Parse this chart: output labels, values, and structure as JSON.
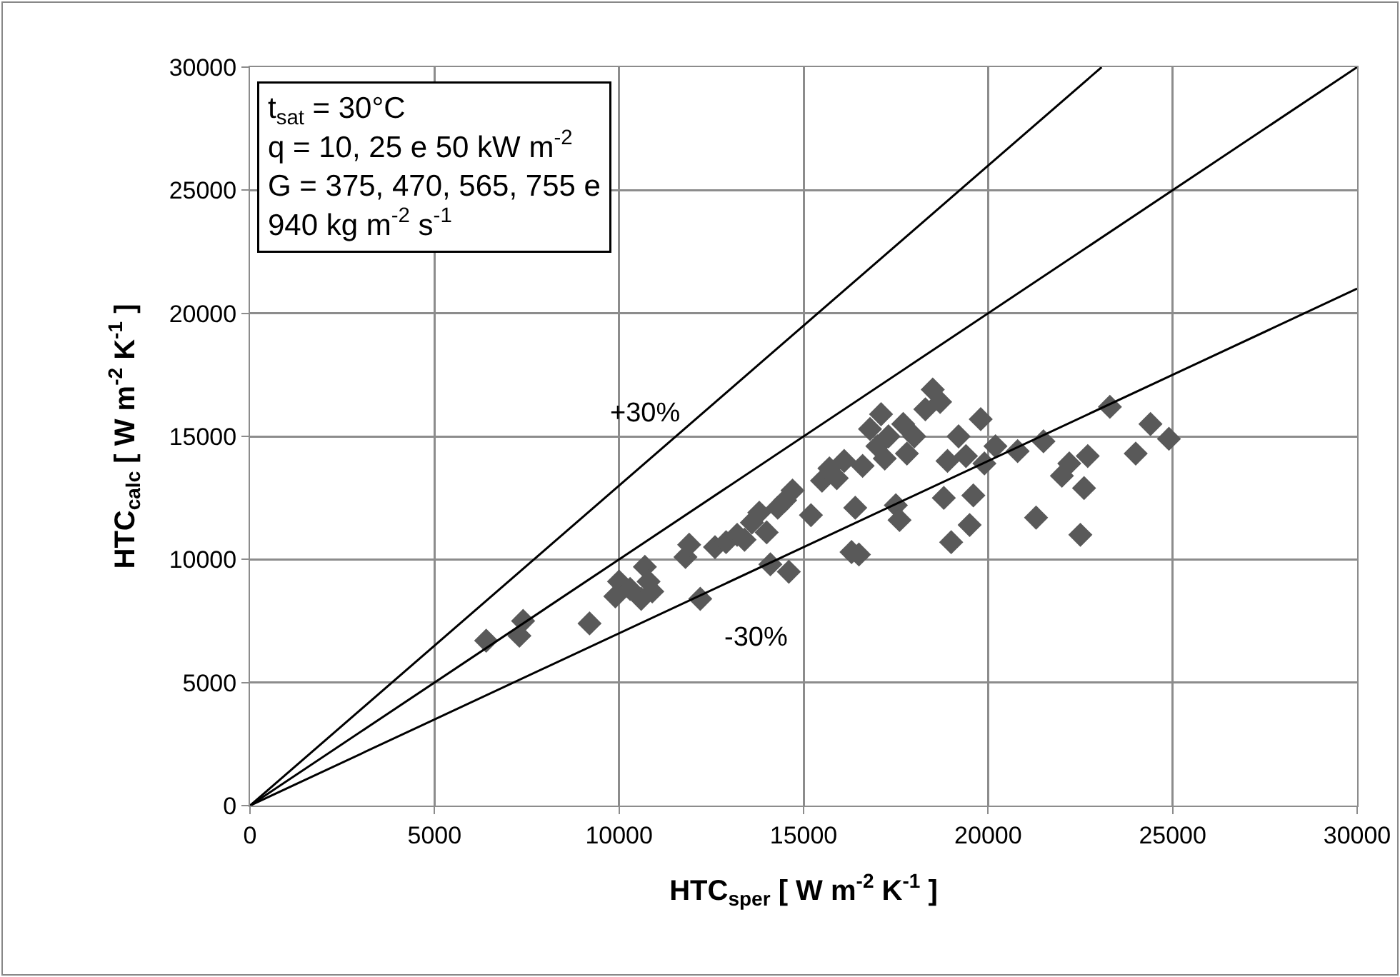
{
  "chart_data": {
    "type": "scatter",
    "xlabel": "HTC$_{sper}$ [ W m$^{-2}$ K$^{-1}$ ]",
    "ylabel": "HTC$_{calc}$ [ W m$^{-2}$ K$^{-1}$ ]",
    "xlim": [
      0,
      30000
    ],
    "ylim": [
      0,
      30000
    ],
    "xticks": [
      0,
      5000,
      10000,
      15000,
      20000,
      25000,
      30000
    ],
    "yticks": [
      0,
      5000,
      10000,
      15000,
      20000,
      25000,
      30000
    ],
    "grid": true,
    "marker": "diamond",
    "annotations": [
      "t$_{sat}$ = 30°C\nq = 10, 25 e 50 kW m$^{-2}$\nG = 375, 470, 565, 755 e\n940 kg m$^{-2}$ s$^{-1}$",
      "+30%",
      "-30%"
    ],
    "series": [
      {
        "color": "#595959",
        "x": [
          6400,
          7300,
          7400,
          9200,
          9900,
          10000,
          10300,
          10600,
          10700,
          10800,
          10900,
          11800,
          11900,
          12200,
          12600,
          12900,
          13200,
          13400,
          13600,
          13800,
          14000,
          14100,
          14300,
          14500,
          14600,
          14700,
          15200,
          15500,
          15700,
          15900,
          16100,
          16300,
          16400,
          16500,
          16600,
          16800,
          17000,
          17100,
          17200,
          17300,
          17500,
          17600,
          17700,
          17800,
          18000,
          18300,
          18500,
          18700,
          18800,
          18900,
          19000,
          19200,
          19400,
          19500,
          19600,
          19800,
          19900,
          20200,
          20800,
          21300,
          21500,
          22000,
          22200,
          22500,
          22600,
          22700,
          23300,
          24000,
          24400,
          24900
        ],
        "values": [
          6700,
          6900,
          7500,
          7400,
          8500,
          9100,
          8800,
          8400,
          9700,
          9100,
          8700,
          10100,
          10600,
          8400,
          10500,
          10700,
          11000,
          10800,
          11500,
          11900,
          11100,
          9800,
          12100,
          12400,
          9500,
          12800,
          11800,
          13200,
          13700,
          13300,
          14000,
          10300,
          12100,
          10200,
          13800,
          15300,
          14600,
          15900,
          14100,
          15000,
          12200,
          11600,
          15500,
          14300,
          15000,
          16100,
          16900,
          16400,
          12500,
          14000,
          10700,
          15000,
          14200,
          11400,
          12600,
          15700,
          13900,
          14600,
          14400,
          11700,
          14800,
          13400,
          13900,
          11000,
          12900,
          14200,
          16200,
          14300,
          15500,
          14900
        ]
      },
      {
        "type": "line",
        "marker": "none",
        "color": "#000000",
        "x": [
          0,
          30000
        ],
        "values": [
          0,
          30000
        ]
      },
      {
        "type": "line",
        "marker": "none",
        "color": "#000000",
        "x": [
          0,
          23077
        ],
        "values": [
          0,
          30000
        ]
      },
      {
        "type": "line",
        "marker": "none",
        "color": "#000000",
        "x": [
          0,
          30000
        ],
        "values": [
          0,
          21000
        ]
      }
    ]
  }
}
